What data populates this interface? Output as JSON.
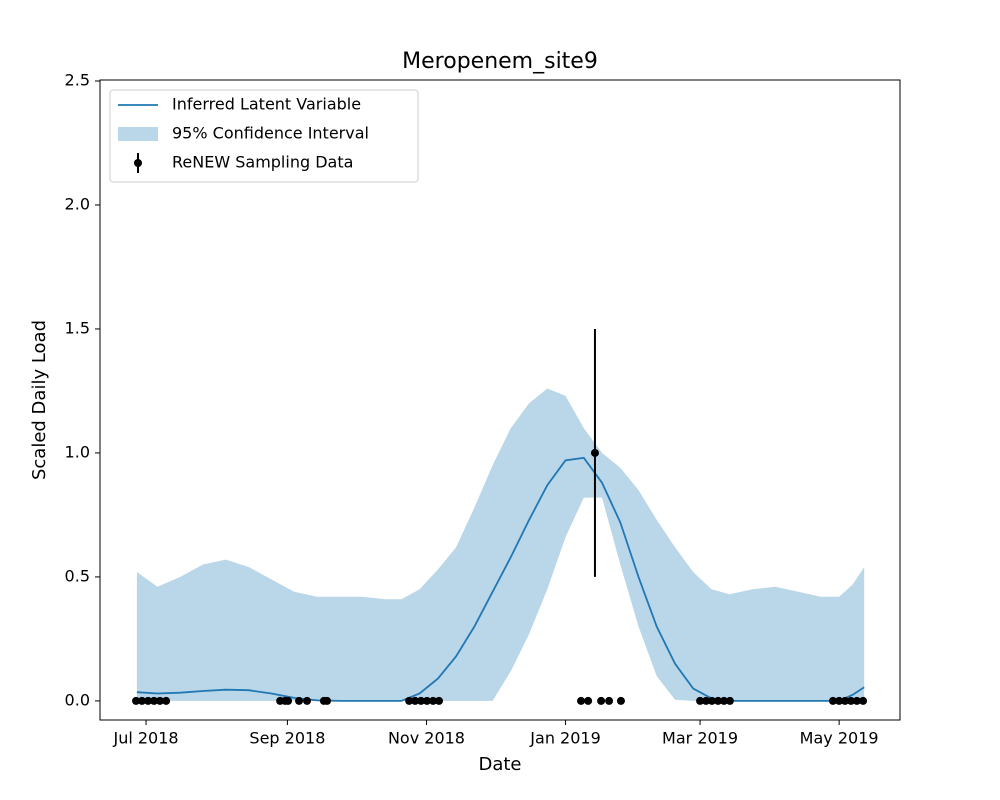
{
  "chart_data": {
    "type": "line",
    "title": "Meropenem_site9",
    "xlabel": "Date",
    "ylabel": "Scaled Daily Load",
    "xlim": [
      -20.2,
      330.7
    ],
    "xticks": [
      {
        "value": 0,
        "label": "Jul 2018"
      },
      {
        "value": 62,
        "label": "Sep 2018"
      },
      {
        "value": 123,
        "label": "Nov 2018"
      },
      {
        "value": 184,
        "label": "Jan 2019"
      },
      {
        "value": 243,
        "label": "Mar 2019"
      },
      {
        "value": 304,
        "label": "May 2019"
      }
    ],
    "ylim": [
      -0.077,
      2.504
    ],
    "yticks": [
      {
        "value": 0,
        "label": "0.0"
      },
      {
        "value": 0.5,
        "label": "0.5"
      },
      {
        "value": 1,
        "label": "1.0"
      },
      {
        "value": 1.5,
        "label": "1.5"
      },
      {
        "value": 2,
        "label": "2.0"
      },
      {
        "value": 2.5,
        "label": "2.5"
      }
    ],
    "legend": "upper left",
    "series": [
      {
        "name": "Inferred Latent Variable",
        "kind": "line",
        "color": "#1f77b4",
        "x": [
          -4,
          5,
          15,
          25,
          35,
          45,
          55,
          65,
          75,
          85,
          95,
          105,
          112,
          120,
          128,
          136,
          144,
          152,
          160,
          168,
          176,
          184,
          192,
          200,
          208,
          216,
          224,
          232,
          240,
          248,
          256,
          266,
          276,
          286,
          296,
          304,
          310,
          315
        ],
        "values": [
          0.035,
          0.03,
          0.033,
          0.04,
          0.045,
          0.043,
          0.03,
          0.012,
          0.002,
          0,
          0,
          0,
          0,
          0.03,
          0.09,
          0.18,
          0.3,
          0.44,
          0.58,
          0.73,
          0.87,
          0.97,
          0.98,
          0.88,
          0.72,
          0.5,
          0.3,
          0.15,
          0.05,
          0.01,
          0,
          0,
          0,
          0,
          0,
          0,
          0.025,
          0.055
        ]
      },
      {
        "name": "95% Confidence Interval",
        "kind": "band",
        "color": "#bad6e9",
        "x": [
          -4,
          5,
          15,
          25,
          35,
          45,
          55,
          65,
          75,
          85,
          95,
          105,
          112,
          120,
          128,
          136,
          144,
          152,
          160,
          168,
          176,
          184,
          192,
          200,
          208,
          216,
          224,
          232,
          240,
          248,
          256,
          266,
          276,
          286,
          296,
          304,
          310,
          315
        ],
        "lower": [
          0,
          0,
          0,
          0,
          0,
          0,
          0,
          0,
          0,
          0,
          0,
          0,
          0,
          0,
          0,
          0,
          0,
          0,
          0.12,
          0.27,
          0.45,
          0.66,
          0.82,
          0.82,
          0.55,
          0.3,
          0.1,
          0.005,
          0,
          0,
          0,
          0,
          0,
          0,
          0,
          0,
          0,
          0
        ],
        "upper": [
          0.52,
          0.46,
          0.5,
          0.55,
          0.57,
          0.54,
          0.49,
          0.44,
          0.42,
          0.42,
          0.42,
          0.41,
          0.41,
          0.45,
          0.53,
          0.62,
          0.78,
          0.95,
          1.1,
          1.2,
          1.26,
          1.23,
          1.1,
          1.0,
          0.94,
          0.85,
          0.73,
          0.62,
          0.52,
          0.45,
          0.43,
          0.45,
          0.46,
          0.44,
          0.42,
          0.42,
          0.47,
          0.54
        ]
      },
      {
        "name": "ReNEW Sampling Data",
        "kind": "errorbar",
        "color": "#000000",
        "x": [
          -4.4,
          -1.8,
          0.9,
          3.5,
          6.1,
          8.8,
          58.8,
          61,
          62.3,
          67.1,
          70.6,
          78,
          79.4,
          115.4,
          118,
          120.6,
          123.2,
          125.9,
          128.5,
          190.8,
          193.9,
          196.9,
          199.6,
          203.1,
          208.3,
          243,
          245.6,
          248.2,
          250.9,
          253.5,
          256.1,
          301.3,
          304,
          306.6,
          309.2,
          311.8,
          314.5
        ],
        "values": [
          0,
          0,
          0,
          0,
          0,
          0,
          0,
          0,
          0,
          0,
          0,
          0,
          0,
          0,
          0,
          0,
          0,
          0,
          0,
          0,
          0,
          1,
          0,
          0,
          0,
          0,
          0,
          0,
          0,
          0,
          0,
          0,
          0,
          0,
          0,
          0,
          0
        ],
        "errors": [
          null,
          null,
          null,
          null,
          null,
          null,
          null,
          null,
          null,
          null,
          null,
          null,
          null,
          null,
          null,
          null,
          null,
          null,
          null,
          null,
          null,
          0.5,
          null,
          null,
          null,
          null,
          null,
          null,
          null,
          null,
          null,
          null,
          null,
          null,
          null,
          null,
          null
        ]
      }
    ]
  }
}
